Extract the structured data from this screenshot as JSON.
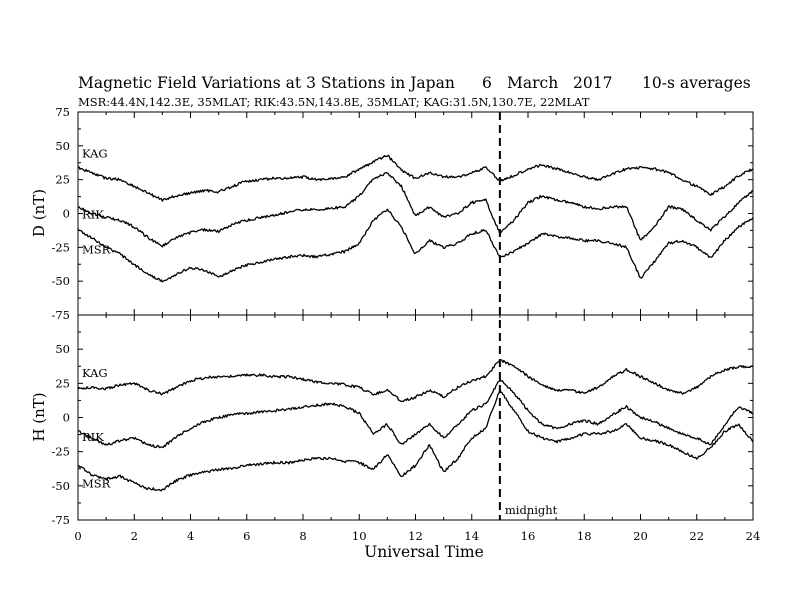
{
  "header": {
    "title": "Magnetic Field Variations at 3 Stations in Japan",
    "day": "6",
    "month": "March",
    "year": "2017",
    "averaging": "10-s averages",
    "stations_line": "MSR:44.4N,142.3E, 35MLAT;  RIK:43.5N,143.8E, 35MLAT;  KAG:31.5N,130.7E, 22MLAT"
  },
  "chart_data": {
    "type": "line",
    "xlabel": "Universal Time",
    "xlim": [
      0,
      24
    ],
    "xticks": [
      "0",
      "2",
      "4",
      "6",
      "8",
      "10",
      "12",
      "14",
      "16",
      "18",
      "20",
      "22",
      "24"
    ],
    "marker": {
      "x": 15,
      "label": "midnight",
      "style": "dashed"
    },
    "panels": [
      {
        "ylabel": "D (nT)",
        "ylim": [
          -75,
          75
        ],
        "yticks": [
          "75",
          "50",
          "25",
          "0",
          "-25",
          "-50",
          "-75"
        ],
        "series": [
          {
            "name": "KAG",
            "x": [
              0,
              0.5,
              1,
              1.5,
              2,
              2.5,
              3,
              3.5,
              4,
              4.5,
              5,
              5.5,
              6,
              6.5,
              7,
              7.5,
              8,
              8.5,
              9,
              9.5,
              10,
              10.5,
              11,
              11.5,
              12,
              12.5,
              13,
              13.5,
              14,
              14.5,
              15,
              15.5,
              16,
              16.5,
              17,
              17.5,
              18,
              18.5,
              19,
              19.5,
              20,
              20.5,
              21,
              21.5,
              22,
              22.5,
              23,
              23.5,
              24
            ],
            "values": [
              34,
              30,
              26,
              25,
              20,
              15,
              10,
              13,
              15,
              17,
              16,
              20,
              24,
              25,
              26,
              26,
              27,
              25,
              26,
              27,
              33,
              38,
              43,
              32,
              26,
              30,
              27,
              27,
              30,
              34,
              24,
              28,
              33,
              36,
              33,
              30,
              27,
              25,
              29,
              33,
              34,
              33,
              30,
              25,
              20,
              14,
              20,
              28,
              33
            ]
          },
          {
            "name": "RIK",
            "x": [
              0,
              0.5,
              1,
              1.5,
              2,
              2.5,
              3,
              3.5,
              4,
              4.5,
              5,
              5.5,
              6,
              6.5,
              7,
              7.5,
              8,
              8.5,
              9,
              9.5,
              10,
              10.5,
              11,
              11.5,
              12,
              12.5,
              13,
              13.5,
              14,
              14.5,
              15,
              15.5,
              16,
              16.5,
              17,
              17.5,
              18,
              18.5,
              19,
              19.5,
              20,
              20.5,
              21,
              21.5,
              22,
              22.5,
              23,
              23.5,
              24
            ],
            "values": [
              5,
              0,
              -3,
              -5,
              -10,
              -18,
              -24,
              -18,
              -14,
              -12,
              -13,
              -8,
              -5,
              -3,
              -1,
              1,
              3,
              3,
              4,
              5,
              13,
              26,
              30,
              20,
              -2,
              5,
              -3,
              0,
              8,
              10,
              -15,
              -5,
              8,
              13,
              10,
              8,
              5,
              3,
              5,
              5,
              -20,
              -10,
              5,
              3,
              -5,
              -12,
              -2,
              8,
              17
            ]
          },
          {
            "name": "MSR",
            "x": [
              0,
              0.5,
              1,
              1.5,
              2,
              2.5,
              3,
              3.5,
              4,
              4.5,
              5,
              5.5,
              6,
              6.5,
              7,
              7.5,
              8,
              8.5,
              9,
              9.5,
              10,
              10.5,
              11,
              11.5,
              12,
              12.5,
              13,
              13.5,
              14,
              14.5,
              15,
              15.5,
              16,
              16.5,
              17,
              17.5,
              18,
              18.5,
              19,
              19.5,
              20,
              20.5,
              21,
              21.5,
              22,
              22.5,
              23,
              23.5,
              24
            ],
            "values": [
              -12,
              -18,
              -25,
              -30,
              -38,
              -45,
              -50,
              -45,
              -40,
              -42,
              -47,
              -42,
              -38,
              -36,
              -34,
              -32,
              -31,
              -32,
              -30,
              -28,
              -22,
              -5,
              3,
              -10,
              -30,
              -20,
              -25,
              -22,
              -15,
              -12,
              -33,
              -28,
              -22,
              -15,
              -17,
              -18,
              -20,
              -20,
              -22,
              -25,
              -48,
              -35,
              -22,
              -20,
              -25,
              -33,
              -20,
              -10,
              -3
            ]
          }
        ]
      },
      {
        "ylabel": "H (nT)",
        "ylim": [
          -75,
          75
        ],
        "yticks": [
          "",
          "50",
          "25",
          "0",
          "-25",
          "-50",
          "-75"
        ],
        "series": [
          {
            "name": "KAG",
            "x": [
              0,
              0.5,
              1,
              1.5,
              2,
              2.5,
              3,
              3.5,
              4,
              4.5,
              5,
              5.5,
              6,
              6.5,
              7,
              7.5,
              8,
              8.5,
              9,
              9.5,
              10,
              10.5,
              11,
              11.5,
              12,
              12.5,
              13,
              13.5,
              14,
              14.5,
              15,
              15.5,
              16,
              16.5,
              17,
              17.5,
              18,
              18.5,
              19,
              19.5,
              20,
              20.5,
              21,
              21.5,
              22,
              22.5,
              23,
              23.5,
              24
            ],
            "values": [
              21,
              22,
              21,
              24,
              25,
              20,
              17,
              22,
              27,
              29,
              30,
              30,
              31,
              31,
              30,
              30,
              28,
              26,
              25,
              24,
              22,
              17,
              20,
              12,
              15,
              20,
              15,
              22,
              27,
              30,
              42,
              38,
              30,
              24,
              20,
              20,
              18,
              22,
              30,
              35,
              30,
              25,
              20,
              18,
              22,
              30,
              35,
              37,
              37
            ]
          },
          {
            "name": "RIK",
            "x": [
              0,
              0.5,
              1,
              1.5,
              2,
              2.5,
              3,
              3.5,
              4,
              4.5,
              5,
              5.5,
              6,
              6.5,
              7,
              7.5,
              8,
              8.5,
              9,
              9.5,
              10,
              10.5,
              11,
              11.5,
              12,
              12.5,
              13,
              13.5,
              14,
              14.5,
              15,
              15.5,
              16,
              16.5,
              17,
              17.5,
              18,
              18.5,
              19,
              19.5,
              20,
              20.5,
              21,
              21.5,
              22,
              22.5,
              23,
              23.5,
              24
            ],
            "values": [
              -10,
              -15,
              -20,
              -17,
              -15,
              -20,
              -22,
              -14,
              -8,
              -3,
              0,
              2,
              3,
              4,
              5,
              6,
              8,
              9,
              10,
              8,
              3,
              -12,
              -5,
              -20,
              -12,
              -5,
              -15,
              -5,
              5,
              10,
              28,
              18,
              5,
              -5,
              -8,
              -5,
              -2,
              -5,
              2,
              8,
              0,
              -3,
              -8,
              -12,
              -15,
              -20,
              -5,
              8,
              3
            ]
          },
          {
            "name": "MSR",
            "x": [
              0,
              0.5,
              1,
              1.5,
              2,
              2.5,
              3,
              3.5,
              4,
              4.5,
              5,
              5.5,
              6,
              6.5,
              7,
              7.5,
              8,
              8.5,
              9,
              9.5,
              10,
              10.5,
              11,
              11.5,
              12,
              12.5,
              13,
              13.5,
              14,
              14.5,
              15,
              15.5,
              16,
              16.5,
              17,
              17.5,
              18,
              18.5,
              19,
              19.5,
              20,
              20.5,
              21,
              21.5,
              22,
              22.5,
              23,
              23.5,
              24
            ],
            "values": [
              -35,
              -42,
              -45,
              -43,
              -48,
              -52,
              -53,
              -46,
              -42,
              -40,
              -38,
              -37,
              -35,
              -34,
              -33,
              -33,
              -31,
              -30,
              -30,
              -32,
              -33,
              -38,
              -27,
              -43,
              -35,
              -20,
              -40,
              -30,
              -15,
              -8,
              20,
              5,
              -10,
              -15,
              -18,
              -15,
              -12,
              -12,
              -10,
              -5,
              -15,
              -17,
              -20,
              -25,
              -30,
              -22,
              -10,
              -5,
              -18
            ]
          }
        ]
      }
    ]
  }
}
